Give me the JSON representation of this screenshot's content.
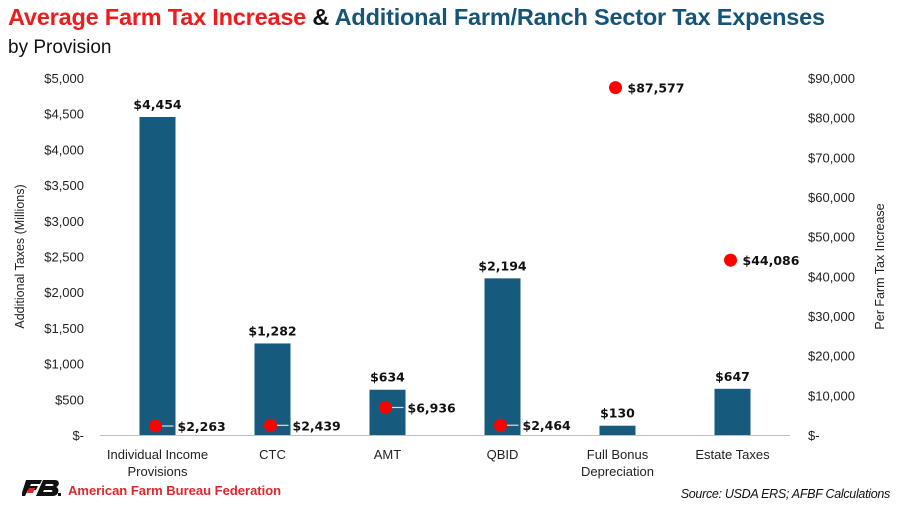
{
  "header": {
    "title_part1": "Average Farm Tax Increase",
    "title_amp": "&",
    "title_part2": "Additional Farm/Ranch Sector Tax Expenses",
    "subtitle": "by Provision"
  },
  "footer": {
    "logo_icon": "afbf-logo-icon",
    "organization": "American Farm Bureau Federation",
    "source": "Source: USDA ERS; AFBF Calculations"
  },
  "colors": {
    "bar": "#165b7e",
    "dot": "#ff0000",
    "title_red": "#ee1c1c",
    "title_blue": "#165478",
    "axis_line": "#bfbfbf",
    "leader_line": "#bfbfbf"
  },
  "chart_data": {
    "type": "bar",
    "title": "Average Farm Tax Increase & Additional Farm/Ranch Sector Tax Expenses",
    "subtitle": "by Provision",
    "categories": [
      [
        "Individual Income",
        "Provisions"
      ],
      [
        "CTC"
      ],
      [
        "AMT"
      ],
      [
        "QBID"
      ],
      [
        "Full Bonus",
        "Depreciation"
      ],
      [
        "Estate Taxes"
      ]
    ],
    "series": [
      {
        "name": "Additional Taxes (Millions)",
        "type": "bar",
        "axis": "left",
        "values": [
          4454,
          1282,
          634,
          2194,
          130,
          647
        ],
        "labels": [
          "$4,454",
          "$1,282",
          "$634",
          "$2,194",
          "$130",
          "$647"
        ]
      },
      {
        "name": "Per Farm Tax Increase",
        "type": "scatter",
        "axis": "right",
        "values": [
          2263,
          2439,
          6936,
          2464,
          87577,
          44086
        ],
        "labels": [
          "$2,263",
          "$2,439",
          "$6,936",
          "$2,464",
          "$87,577",
          "$44,086"
        ],
        "leader_lines": [
          true,
          true,
          true,
          true,
          false,
          false
        ]
      }
    ],
    "ylabel": "Additional Taxes (Millions)",
    "ylim": [
      0,
      5000
    ],
    "yticks": [
      0,
      500,
      1000,
      1500,
      2000,
      2500,
      3000,
      3500,
      4000,
      4500,
      5000
    ],
    "ytick_labels": [
      "$-",
      "$500",
      "$1,000",
      "$1,500",
      "$2,000",
      "$2,500",
      "$3,000",
      "$3,500",
      "$4,000",
      "$4,500",
      "$5,000"
    ],
    "y2label": "Per Farm Tax Increase",
    "y2lim": [
      0,
      90000
    ],
    "y2ticks": [
      0,
      10000,
      20000,
      30000,
      40000,
      50000,
      60000,
      70000,
      80000,
      90000
    ],
    "y2tick_labels": [
      "$-",
      "$10,000",
      "$20,000",
      "$30,000",
      "$40,000",
      "$50,000",
      "$60,000",
      "$70,000",
      "$80,000",
      "$90,000"
    ],
    "grid": false,
    "legend": "none"
  }
}
